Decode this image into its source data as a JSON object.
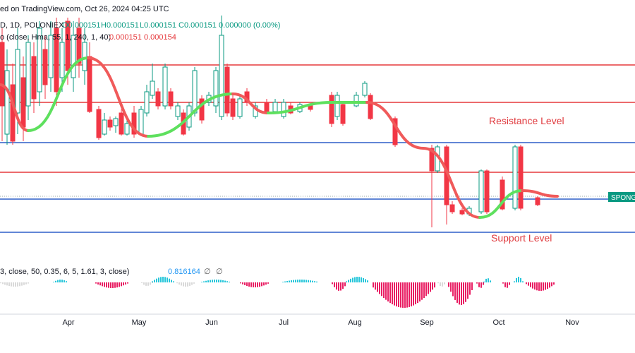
{
  "header": {
    "source": "ed on TradingView.com, Oct 26, 2024 04:25 UTC",
    "symbol": "D, 1D, POLONIEX",
    "ohlc": [
      "O0.000151",
      "H0.000151",
      "L0.000151",
      "C0.000151",
      "0.000000 (0.00%)"
    ],
    "indicator": "o (close, Hma, 55, 1, 240, 1, 40)",
    "indicator_values": [
      "0.000151",
      "0.000154"
    ]
  },
  "annotations": {
    "resistance": "Resistance Level",
    "support": "Support Level",
    "price_tag": "SPONG"
  },
  "oscillator": {
    "label": "3, close, 50, 0.35, 6, 5, 1.61, 3, close)",
    "value": "0.816164",
    "symbols": [
      "∅",
      "∅"
    ]
  },
  "x_axis": [
    "Apr",
    "May",
    "Jun",
    "Jul",
    "Aug",
    "Sep",
    "Oct",
    "Nov"
  ]
}
